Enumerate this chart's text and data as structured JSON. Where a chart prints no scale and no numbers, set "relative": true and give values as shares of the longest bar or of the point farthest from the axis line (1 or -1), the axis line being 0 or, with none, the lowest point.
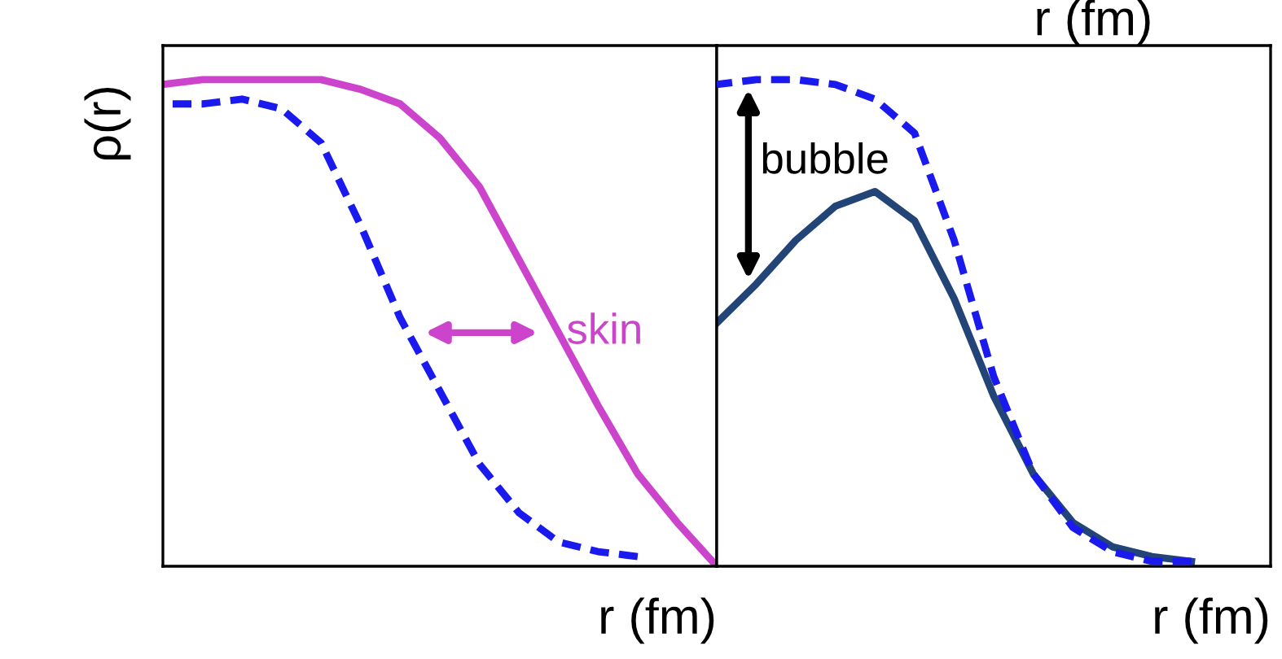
{
  "chart_data": [
    {
      "type": "line",
      "ylabel": "ρ(r)",
      "xlabel": "r (fm)",
      "relative": true,
      "grid": false,
      "legend": false,
      "categories": [
        null,
        null,
        null,
        null,
        null,
        null,
        null,
        null,
        null,
        null,
        null,
        null,
        null,
        null,
        null
      ],
      "series": [
        {
          "color": "#cc44cc",
          "line_style": "solid",
          "values": [
            0.99,
            1.0,
            1.0,
            1.0,
            1.0,
            0.98,
            0.95,
            0.88,
            0.78,
            0.63,
            0.48,
            0.33,
            0.19,
            0.09,
            0
          ]
        },
        {
          "color": "#1a1aee",
          "line_style": "dashed",
          "values": [
            0.95,
            0.95,
            0.96,
            0.94,
            0.87,
            0.7,
            0.51,
            0.36,
            0.21,
            0.11,
            0.05,
            0.03,
            0.02,
            null,
            null
          ]
        }
      ],
      "annotations": [
        "skin"
      ]
    },
    {
      "type": "line",
      "title": "r (fm)",
      "xlabel": "r (fm)",
      "relative": true,
      "grid": false,
      "legend": false,
      "categories": [
        null,
        null,
        null,
        null,
        null,
        null,
        null,
        null,
        null,
        null,
        null,
        null,
        null,
        null,
        null
      ],
      "series": [
        {
          "color": "#1a1aee",
          "line_style": "dashed",
          "values": [
            0.99,
            1.0,
            1.0,
            0.99,
            0.96,
            0.89,
            0.67,
            0.39,
            0.19,
            0.08,
            0.03,
            0.01,
            0.01,
            null,
            null
          ]
        },
        {
          "color": "#224477",
          "line_style": "solid",
          "values": [
            0.5,
            0.58,
            0.67,
            0.74,
            0.77,
            0.71,
            0.55,
            0.35,
            0.19,
            0.09,
            0.04,
            0.02,
            0.01,
            null,
            null
          ]
        }
      ],
      "annotations": [
        "bubble"
      ]
    }
  ]
}
